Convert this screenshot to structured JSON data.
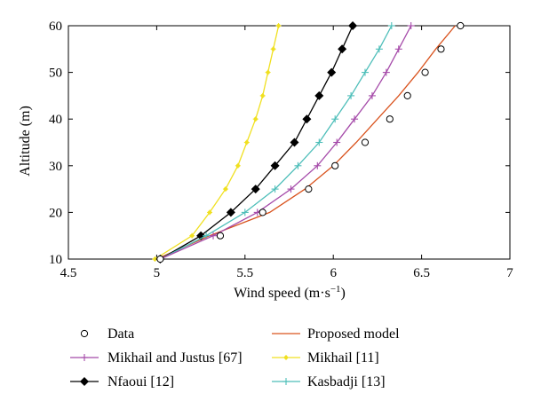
{
  "chart_data": {
    "type": "line",
    "xlabel": "Wind speed (m·s",
    "xlabel_sup": "−1",
    "xlabel_close": ")",
    "ylabel": "Altitude (m)",
    "xlim": [
      4.5,
      7
    ],
    "ylim": [
      10,
      60
    ],
    "xticks": [
      4.5,
      5,
      5.5,
      6,
      6.5,
      7
    ],
    "xtick_labels": [
      "4.5",
      "5",
      "5.5",
      "6",
      "6.5",
      "7"
    ],
    "yticks": [
      10,
      20,
      30,
      40,
      50,
      60
    ],
    "ytick_labels": [
      "10",
      "20",
      "30",
      "40",
      "50",
      "60"
    ],
    "grid": false,
    "legend_position": "below",
    "series": [
      {
        "name": "Data",
        "color": "#000000",
        "marker": "open-circle",
        "line": false,
        "points": [
          [
            5.02,
            10
          ],
          [
            5.36,
            15
          ],
          [
            5.6,
            20
          ],
          [
            5.86,
            25
          ],
          [
            6.01,
            30
          ],
          [
            6.18,
            35
          ],
          [
            6.32,
            40
          ],
          [
            6.42,
            45
          ],
          [
            6.52,
            50
          ],
          [
            6.61,
            55
          ],
          [
            6.72,
            60
          ]
        ]
      },
      {
        "name": "Proposed model",
        "color": "#d9531e",
        "marker": "none",
        "line": true,
        "points": [
          [
            5.0,
            10
          ],
          [
            5.3,
            15
          ],
          [
            5.64,
            20
          ],
          [
            5.84,
            25
          ],
          [
            6.0,
            30
          ],
          [
            6.13,
            35
          ],
          [
            6.25,
            40
          ],
          [
            6.37,
            45
          ],
          [
            6.48,
            50
          ],
          [
            6.58,
            55
          ],
          [
            6.69,
            60
          ]
        ]
      },
      {
        "name": "Mikhail and Justus [67]",
        "color": "#a54aa9",
        "marker": "plus",
        "line": true,
        "points": [
          [
            5.02,
            10
          ],
          [
            5.32,
            15
          ],
          [
            5.57,
            20
          ],
          [
            5.76,
            25
          ],
          [
            5.91,
            30
          ],
          [
            6.02,
            35
          ],
          [
            6.12,
            40
          ],
          [
            6.22,
            45
          ],
          [
            6.3,
            50
          ],
          [
            6.37,
            55
          ],
          [
            6.44,
            60
          ]
        ]
      },
      {
        "name": "Mikhail [11]",
        "color": "#f0e020",
        "marker": "star",
        "line": true,
        "points": [
          [
            4.99,
            10
          ],
          [
            5.2,
            15
          ],
          [
            5.3,
            20
          ],
          [
            5.39,
            25
          ],
          [
            5.46,
            30
          ],
          [
            5.51,
            35
          ],
          [
            5.56,
            40
          ],
          [
            5.6,
            45
          ],
          [
            5.63,
            50
          ],
          [
            5.66,
            55
          ],
          [
            5.69,
            60
          ]
        ]
      },
      {
        "name": "Nfaoui [12]",
        "color": "#000000",
        "marker": "diamond",
        "line": true,
        "points": [
          [
            5.02,
            10
          ],
          [
            5.25,
            15
          ],
          [
            5.42,
            20
          ],
          [
            5.56,
            25
          ],
          [
            5.67,
            30
          ],
          [
            5.78,
            35
          ],
          [
            5.85,
            40
          ],
          [
            5.92,
            45
          ],
          [
            5.99,
            50
          ],
          [
            6.05,
            55
          ],
          [
            6.11,
            60
          ]
        ]
      },
      {
        "name": "Kasbadji [13]",
        "color": "#4dbeb9",
        "marker": "plus",
        "line": true,
        "points": [
          [
            5.02,
            10
          ],
          [
            5.28,
            15
          ],
          [
            5.5,
            20
          ],
          [
            5.67,
            25
          ],
          [
            5.8,
            30
          ],
          [
            5.92,
            35
          ],
          [
            6.01,
            40
          ],
          [
            6.1,
            45
          ],
          [
            6.18,
            50
          ],
          [
            6.26,
            55
          ],
          [
            6.33,
            60
          ]
        ]
      }
    ]
  }
}
